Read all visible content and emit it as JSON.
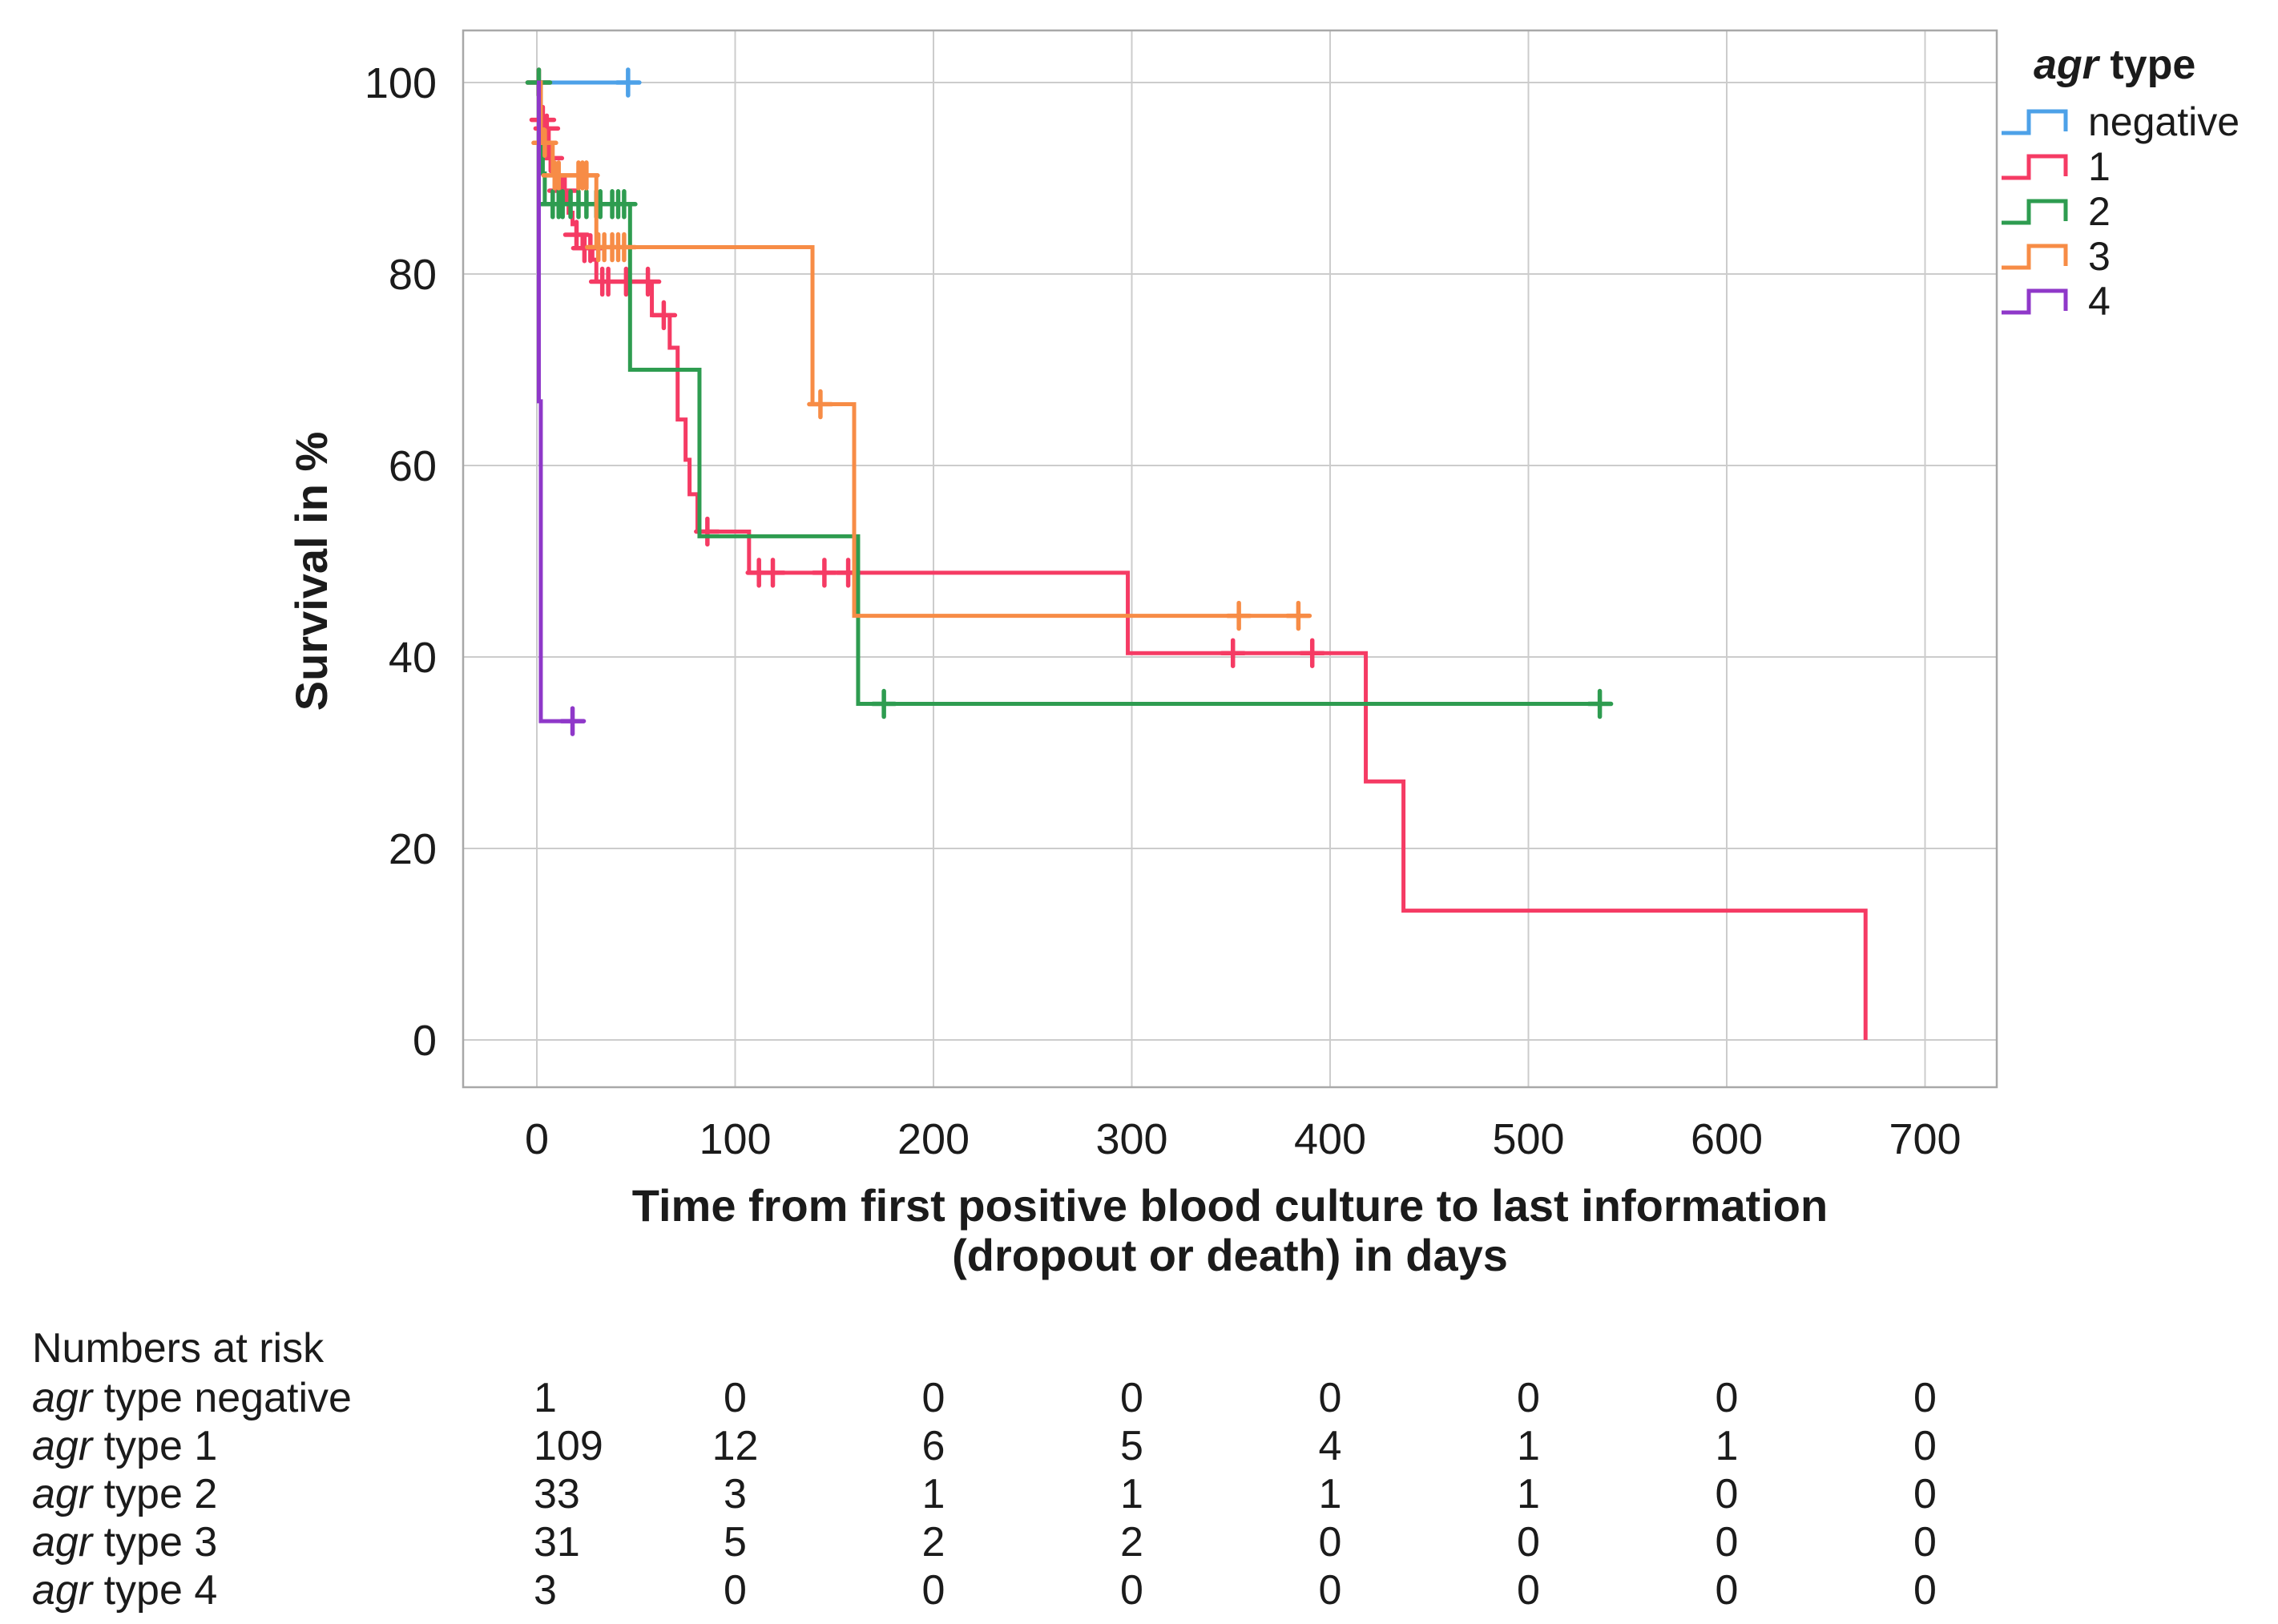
{
  "figure": {
    "background": "#ffffff"
  },
  "chart_data": {
    "type": "line",
    "subtype": "kaplan-meier-step-survival",
    "title": "",
    "ylabel": "Survival in %",
    "xlabel_line1": "Time from first positive blood culture to last information",
    "xlabel_line2": "(dropout or death) in days",
    "x_ticks": [
      0,
      100,
      200,
      300,
      400,
      500,
      600,
      700
    ],
    "y_ticks": [
      0,
      20,
      40,
      60,
      80,
      100
    ],
    "xlim": [
      -37,
      736
    ],
    "ylim": [
      -4.9,
      105.4
    ],
    "grid": true,
    "legend_position": "top-right",
    "legend_title_italic": "agr",
    "legend_title_rest": " type",
    "grid_color": "#cccccc",
    "frame_color": "#a8a8a8",
    "series": [
      {
        "label": "negative",
        "color": "#4da1e8",
        "start_pct": 100,
        "steps": [],
        "end_day": 51,
        "censors": [
          [
            46,
            100
          ]
        ]
      },
      {
        "label": "1",
        "color": "#f53b64",
        "start_pct": 100,
        "steps": [
          [
            2,
            97.2
          ],
          [
            3,
            96.1
          ],
          [
            4,
            95.2
          ],
          [
            6,
            92.1
          ],
          [
            8,
            91.2
          ],
          [
            10,
            89.8
          ],
          [
            12,
            88.7
          ],
          [
            16,
            86.4
          ],
          [
            18,
            85.2
          ],
          [
            20,
            84.1
          ],
          [
            23,
            82.7
          ],
          [
            28,
            81.5
          ],
          [
            30,
            79.2
          ],
          [
            58,
            75.7
          ],
          [
            67,
            72.3
          ],
          [
            71,
            64.8
          ],
          [
            75,
            60.6
          ],
          [
            77,
            57.0
          ],
          [
            81,
            53.1
          ],
          [
            107,
            48.8
          ],
          [
            298,
            40.4
          ],
          [
            418,
            27.0
          ],
          [
            437,
            13.5
          ],
          [
            670,
            0
          ]
        ],
        "end_day": 670,
        "censors": [
          [
            1,
            100
          ],
          [
            3,
            96.1
          ],
          [
            5,
            95.2
          ],
          [
            7,
            92.1
          ],
          [
            12,
            88.7
          ],
          [
            14,
            88.7
          ],
          [
            20,
            84.1
          ],
          [
            24,
            82.7
          ],
          [
            27,
            82.7
          ],
          [
            33,
            79.2
          ],
          [
            36,
            79.2
          ],
          [
            45,
            79.2
          ],
          [
            56,
            79.2
          ],
          [
            64,
            75.7
          ],
          [
            86,
            53.1
          ],
          [
            112,
            48.8
          ],
          [
            119,
            48.8
          ],
          [
            145,
            48.8
          ],
          [
            157,
            48.8
          ],
          [
            351,
            40.4
          ],
          [
            391,
            40.4
          ]
        ]
      },
      {
        "label": "2",
        "color": "#2e9c50",
        "start_pct": 100,
        "steps": [
          [
            2,
            93.8
          ],
          [
            3,
            90.5
          ],
          [
            4,
            87.3
          ],
          [
            47,
            70.0
          ],
          [
            82,
            52.6
          ],
          [
            162,
            35.1
          ]
        ],
        "end_day": 540,
        "censors": [
          [
            1,
            100
          ],
          [
            8,
            87.3
          ],
          [
            11,
            87.3
          ],
          [
            13,
            87.3
          ],
          [
            17,
            87.3
          ],
          [
            21,
            87.3
          ],
          [
            25,
            87.3
          ],
          [
            30,
            87.3
          ],
          [
            32,
            87.3
          ],
          [
            38,
            87.3
          ],
          [
            41,
            87.3
          ],
          [
            44,
            87.3
          ],
          [
            175,
            35.1
          ],
          [
            536,
            35.1
          ]
        ]
      },
      {
        "label": "3",
        "color": "#f78c46",
        "start_pct": 100,
        "steps": [
          [
            2,
            95.1
          ],
          [
            3,
            93.7
          ],
          [
            8,
            90.3
          ],
          [
            30,
            82.8
          ],
          [
            139,
            66.4
          ],
          [
            160,
            44.3
          ]
        ],
        "end_day": 389,
        "censors": [
          [
            4,
            93.7
          ],
          [
            9,
            90.3
          ],
          [
            11,
            90.3
          ],
          [
            21,
            90.3
          ],
          [
            23,
            90.3
          ],
          [
            25,
            90.3
          ],
          [
            31,
            82.8
          ],
          [
            34,
            82.8
          ],
          [
            38,
            82.8
          ],
          [
            41,
            82.8
          ],
          [
            44,
            82.8
          ],
          [
            143,
            66.4
          ],
          [
            354,
            44.3
          ],
          [
            384,
            44.3
          ]
        ]
      },
      {
        "label": "4",
        "color": "#8f38c9",
        "start_pct": 100,
        "steps": [
          [
            1,
            66.7
          ],
          [
            2,
            33.3
          ]
        ],
        "end_day": 24,
        "censors": [
          [
            18,
            33.3
          ]
        ]
      }
    ]
  },
  "risk_table": {
    "header": "Numbers at risk",
    "times": [
      0,
      100,
      200,
      300,
      400,
      500,
      600,
      700
    ],
    "rows": [
      {
        "label_italic": "agr",
        "label_rest": " type negative",
        "values": [
          1,
          0,
          0,
          0,
          0,
          0,
          0,
          0
        ]
      },
      {
        "label_italic": "agr",
        "label_rest": " type 1",
        "values": [
          109,
          12,
          6,
          5,
          4,
          1,
          1,
          0
        ]
      },
      {
        "label_italic": "agr",
        "label_rest": " type 2",
        "values": [
          33,
          3,
          1,
          1,
          1,
          1,
          0,
          0
        ]
      },
      {
        "label_italic": "agr",
        "label_rest": " type 3",
        "values": [
          31,
          5,
          2,
          2,
          0,
          0,
          0,
          0
        ]
      },
      {
        "label_italic": "agr",
        "label_rest": " type 4",
        "values": [
          3,
          0,
          0,
          0,
          0,
          0,
          0,
          0
        ]
      }
    ]
  }
}
